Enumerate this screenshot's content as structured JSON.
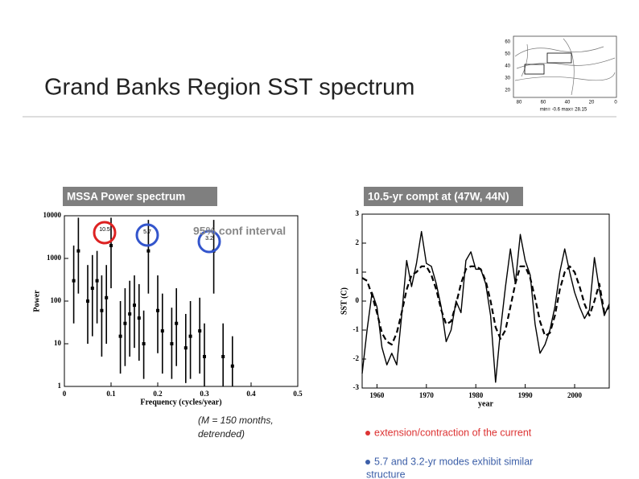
{
  "slide": {
    "title": "Grand Banks Region SST spectrum",
    "note": [
      "(M = 150 months,",
      "detrended)"
    ],
    "bullets": [
      "extension/contraction of the current",
      "5.7 and 3.2-yr modes exhibit similar",
      "structure"
    ],
    "map": {
      "lat_labels": [
        "60",
        "50",
        "40",
        "30",
        "20"
      ],
      "lon_labels": [
        "80",
        "60",
        "40",
        "20",
        "0"
      ],
      "caption": "min= -0.6 max= 28.15"
    }
  },
  "chart_data": [
    {
      "type": "errorbar",
      "title": "MSSA Power spectrum",
      "xlabel": "Frequency (cycles/year)",
      "ylabel": "Power",
      "log_y": true,
      "xlim": [
        0,
        0.5
      ],
      "ylim": [
        1,
        10000
      ],
      "xticks": [
        0,
        0.1,
        0.2,
        0.3,
        0.4,
        0.5
      ],
      "yticks": [
        1,
        10,
        100,
        1000,
        10000
      ],
      "annotations": [
        "10.5",
        "5.7",
        "3.2",
        "95% conf interval"
      ],
      "color": "#000000",
      "x": [
        0.02,
        0.03,
        0.05,
        0.06,
        0.07,
        0.08,
        0.09,
        0.1,
        0.12,
        0.13,
        0.14,
        0.15,
        0.16,
        0.17,
        0.18,
        0.2,
        0.21,
        0.23,
        0.24,
        0.26,
        0.27,
        0.29,
        0.3,
        0.32,
        0.34,
        0.36
      ],
      "values": [
        300,
        1500,
        100,
        200,
        300,
        60,
        120,
        2000,
        15,
        30,
        50,
        80,
        40,
        10,
        1500,
        60,
        20,
        10,
        30,
        8,
        15,
        20,
        5,
        1500,
        5,
        3
      ],
      "lower": [
        30,
        150,
        10,
        15,
        30,
        5,
        10,
        200,
        2,
        3,
        5,
        8,
        4,
        1.5,
        150,
        6,
        2,
        1.5,
        3,
        1.2,
        1.5,
        2,
        1,
        150,
        1,
        1
      ],
      "upper": [
        2000,
        9000,
        700,
        1200,
        1500,
        400,
        700,
        9000,
        100,
        200,
        300,
        400,
        250,
        60,
        8000,
        400,
        150,
        70,
        200,
        50,
        100,
        120,
        30,
        8000,
        30,
        15
      ]
    },
    {
      "type": "line",
      "title": "10.5-yr compt at (47W, 44N)",
      "xlabel": "year",
      "ylabel": "SST (C)",
      "xlim": [
        1957,
        2007
      ],
      "ylim": [
        -3,
        3
      ],
      "xticks": [
        1960,
        1970,
        1980,
        1990,
        2000
      ],
      "yticks": [
        -3,
        -2,
        -1,
        0,
        1,
        2,
        3
      ],
      "x": [
        1957,
        1958,
        1959,
        1960,
        1961,
        1962,
        1963,
        1964,
        1965,
        1966,
        1967,
        1968,
        1969,
        1970,
        1971,
        1972,
        1973,
        1974,
        1975,
        1976,
        1977,
        1978,
        1979,
        1980,
        1981,
        1982,
        1983,
        1984,
        1985,
        1986,
        1987,
        1988,
        1989,
        1990,
        1991,
        1992,
        1993,
        1994,
        1995,
        1996,
        1997,
        1998,
        1999,
        2000,
        2001,
        2002,
        2003,
        2004,
        2005,
        2006,
        2007
      ],
      "series": [
        {
          "color": "#000000",
          "dash": false,
          "values": [
            -2.5,
            -1.0,
            0.3,
            -0.2,
            -1.6,
            -2.2,
            -1.8,
            -2.2,
            -0.5,
            1.4,
            0.5,
            1.3,
            2.4,
            1.3,
            1.2,
            0.6,
            -0.2,
            -1.4,
            -1.0,
            0.0,
            -0.4,
            1.4,
            1.7,
            1.1,
            1.1,
            0.6,
            -0.5,
            -2.8,
            -1.0,
            0.5,
            1.8,
            0.6,
            2.3,
            1.4,
            0.9,
            -0.8,
            -1.8,
            -1.5,
            -1.0,
            -0.2,
            1.0,
            1.8,
            1.0,
            0.3,
            -0.2,
            -0.6,
            -0.3,
            1.5,
            0.4,
            -0.5,
            -0.1
          ]
        },
        {
          "color": "#000000",
          "dash": true,
          "values": [
            0.8,
            0.7,
            0.2,
            -0.4,
            -1.1,
            -1.4,
            -1.5,
            -1.1,
            -0.4,
            0.4,
            0.9,
            1.0,
            1.2,
            1.2,
            0.9,
            0.4,
            -0.3,
            -0.8,
            -0.7,
            -0.1,
            0.6,
            1.1,
            1.2,
            1.2,
            1.1,
            0.7,
            0.0,
            -0.9,
            -1.3,
            -1.0,
            -0.2,
            0.6,
            1.2,
            1.2,
            0.8,
            0.1,
            -0.7,
            -1.2,
            -1.1,
            -0.5,
            0.4,
            1.0,
            1.2,
            1.0,
            0.5,
            -0.1,
            -0.5,
            0.0,
            0.6,
            -0.4,
            -0.2
          ]
        }
      ]
    }
  ]
}
